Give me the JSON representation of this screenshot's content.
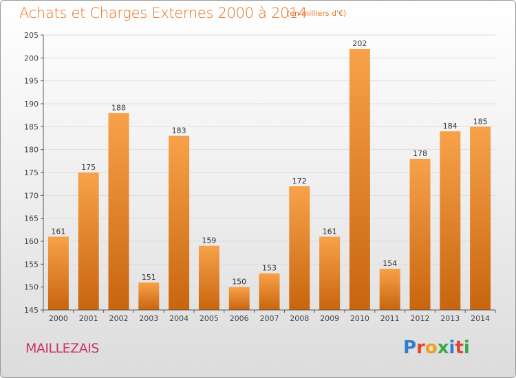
{
  "header": {
    "title": "Achats et Charges Externes 2000 à 2014",
    "unit": "(en milliers d'€)"
  },
  "footer": {
    "commune": "MAILLEZAIS",
    "logo_letters": [
      "P",
      "r",
      "o",
      "x",
      "i",
      "t",
      "i"
    ],
    "logo_colors": [
      "#2f7fcf",
      "#e2452b",
      "#f0a020",
      "#3aa84a",
      "#2f7fcf",
      "#e2452b",
      "#3aa84a"
    ]
  },
  "colors": {
    "bar_light": "#f7a24a",
    "bar_dark": "#c8650e",
    "accent": "#e5731f",
    "grid": "#dddddd"
  },
  "chart_data": {
    "type": "bar",
    "title": "Achats et Charges Externes 2000 à 2014",
    "subtitle": "(en milliers d'€)",
    "xlabel": "",
    "ylabel": "",
    "ylim": [
      145,
      205
    ],
    "yticks": [
      145,
      150,
      155,
      160,
      165,
      170,
      175,
      180,
      185,
      190,
      195,
      200,
      205
    ],
    "grid": true,
    "categories": [
      "2000",
      "2001",
      "2002",
      "2003",
      "2004",
      "2005",
      "2006",
      "2007",
      "2008",
      "2009",
      "2010",
      "2011",
      "2012",
      "2013",
      "2014"
    ],
    "values": [
      161,
      175,
      188,
      151,
      183,
      159,
      150,
      153,
      172,
      161,
      202,
      154,
      178,
      184,
      185
    ]
  }
}
